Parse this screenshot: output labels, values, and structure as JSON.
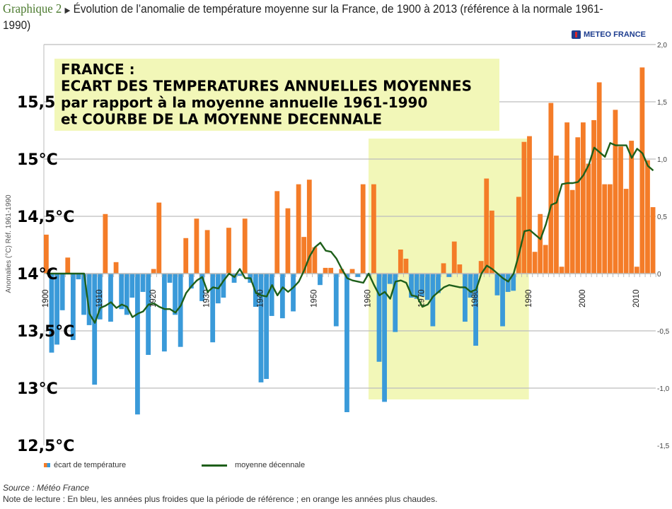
{
  "header": {
    "label": "Graphique 2",
    "arrow_icon": "triangle-right",
    "title": "Évolution de l’anomalie de température moyenne sur la France, de 1900 à 2013 (référence à la normale 1961-1990)"
  },
  "logo": {
    "text": "METEO FRANCE",
    "icon": "meteo-france-logo"
  },
  "annotation_box": {
    "lines": [
      "FRANCE :",
      "ECART DES TEMPERATURES ANNUELLES MOYENNES",
      "par rapport à la moyenne annuelle 1961-1990",
      "et COURBE DE LA MOYENNE DECENNALE"
    ]
  },
  "overlay_labels": [
    "15,5",
    "15°C",
    "14,5°C",
    "14°C",
    "13,5°C",
    "13°C",
    "12,5°C"
  ],
  "legend": {
    "bars": "écart de température",
    "line": "moyenne décennale"
  },
  "footer": {
    "source": "Source : Météo France",
    "note": "Note de lecture : En bleu, les années plus froides que la période de référence ; en orange les années plus chaudes."
  },
  "chart_data": {
    "type": "bar",
    "title": "Évolution de l’anomalie de température moyenne sur la France, de 1900 à 2013 (référence à la normale 1961-1990)",
    "ylabel": "Anomalies (°C) Réf. 1961-1990",
    "xlabel": "",
    "ylim": [
      -1.5,
      2.0
    ],
    "yticks": [
      "2,0",
      "1,5",
      "1,0",
      "0,5",
      "0",
      "-0,5",
      "-1,0",
      "-1,5"
    ],
    "yticks_values": [
      2.0,
      1.5,
      1.0,
      0.5,
      0,
      -0.5,
      -1.0,
      -1.5
    ],
    "xticks": [
      "1900",
      "1910",
      "1920",
      "1930",
      "1940",
      "1950",
      "1960",
      "1970",
      "1980",
      "1990",
      "2000",
      "2010"
    ],
    "grid": true,
    "legend_position": "bottom",
    "reference_period_highlight": [
      1961,
      1990
    ],
    "colors": {
      "positive": "#f47c28",
      "negative": "#3a9ad9",
      "line": "#1e5f1a",
      "highlight": "#f2f7b8"
    },
    "x_start": 1900,
    "x_end": 2013,
    "series": [
      {
        "name": "écart de température",
        "type": "bar",
        "values": [
          0.34,
          -0.69,
          -0.62,
          -0.32,
          0.14,
          -0.58,
          -0.05,
          -0.36,
          -0.45,
          -0.97,
          -0.4,
          0.52,
          -0.42,
          0.1,
          -0.31,
          -0.36,
          -0.21,
          -1.23,
          -0.16,
          -0.71,
          0.04,
          0.62,
          -0.68,
          -0.08,
          -0.36,
          -0.64,
          0.31,
          -0.13,
          0.48,
          -0.24,
          0.38,
          -0.6,
          -0.26,
          -0.21,
          0.4,
          -0.08,
          -0.02,
          0.48,
          -0.08,
          -0.29,
          -0.95,
          -0.92,
          -0.37,
          0.72,
          -0.39,
          0.57,
          -0.33,
          0.78,
          0.32,
          0.82,
          0.23,
          -0.1,
          0.05,
          0.05,
          -0.46,
          0.04,
          -1.21,
          0.04,
          -0.03,
          0.78,
          -0.02,
          0.78,
          -0.77,
          -1.12,
          -0.09,
          -0.51,
          0.21,
          0.13,
          -0.21,
          -0.22,
          -0.2,
          -0.23,
          -0.46,
          -0.17,
          0.09,
          -0.03,
          0.28,
          0.08,
          -0.42,
          -0.21,
          -0.63,
          0.11,
          0.83,
          0.55,
          -0.19,
          -0.46,
          -0.16,
          -0.15,
          0.67,
          1.15,
          1.2,
          0.19,
          0.52,
          0.25,
          1.49,
          1.03,
          0.06,
          1.32,
          0.73,
          1.19,
          1.32,
          0.96,
          1.34,
          1.67,
          0.78,
          0.78,
          1.43,
          1.11,
          0.74,
          1.16,
          0.06,
          1.8,
          0.99,
          0.58
        ]
      },
      {
        "name": "moyenne décennale",
        "type": "line",
        "values": [
          0,
          0,
          0,
          0,
          0,
          0,
          0,
          0,
          -0.35,
          -0.43,
          -0.3,
          -0.28,
          -0.25,
          -0.3,
          -0.27,
          -0.29,
          -0.38,
          -0.35,
          -0.33,
          -0.27,
          -0.26,
          -0.29,
          -0.31,
          -0.31,
          -0.34,
          -0.28,
          -0.17,
          -0.11,
          -0.06,
          -0.03,
          -0.16,
          -0.12,
          -0.13,
          -0.06,
          0.0,
          -0.03,
          0.04,
          -0.04,
          -0.04,
          -0.17,
          -0.19,
          -0.2,
          -0.1,
          -0.19,
          -0.12,
          -0.16,
          -0.12,
          -0.07,
          0.03,
          0.15,
          0.23,
          0.27,
          0.2,
          0.19,
          0.13,
          0.04,
          -0.04,
          -0.06,
          -0.07,
          -0.08,
          0.0,
          -0.1,
          -0.19,
          -0.16,
          -0.22,
          -0.07,
          -0.06,
          -0.08,
          -0.19,
          -0.2,
          -0.29,
          -0.27,
          -0.2,
          -0.16,
          -0.12,
          -0.1,
          -0.11,
          -0.12,
          -0.12,
          -0.16,
          -0.14,
          0.0,
          0.07,
          0.04,
          0.0,
          -0.04,
          -0.07,
          0.0,
          0.17,
          0.37,
          0.38,
          0.34,
          0.3,
          0.43,
          0.6,
          0.62,
          0.78,
          0.79,
          0.79,
          0.8,
          0.86,
          0.95,
          1.1,
          1.06,
          1.02,
          1.14,
          1.12,
          1.12,
          1.12,
          1.01,
          1.09,
          1.05,
          0.94,
          0.9
        ]
      }
    ]
  }
}
